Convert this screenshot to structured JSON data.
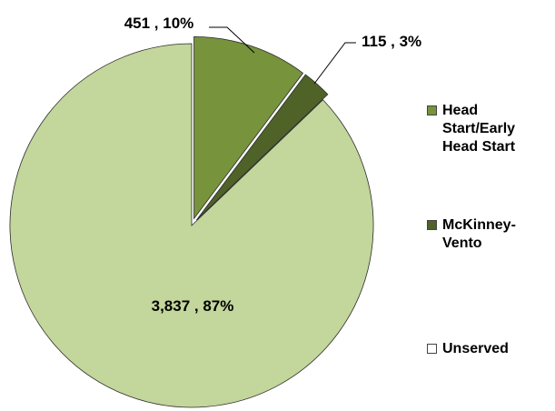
{
  "chart_data": {
    "type": "pie",
    "categories": [
      "Head Start/Early Head Start",
      "McKinney-Vento",
      "Unserved"
    ],
    "values": [
      451,
      115,
      3837
    ],
    "value_labels": [
      "451 , 10%",
      "115 , 3%",
      "3,837 , 87%"
    ],
    "colors": [
      "#77933c",
      "#4f6228",
      "#c3d69b"
    ],
    "legend": "right"
  }
}
